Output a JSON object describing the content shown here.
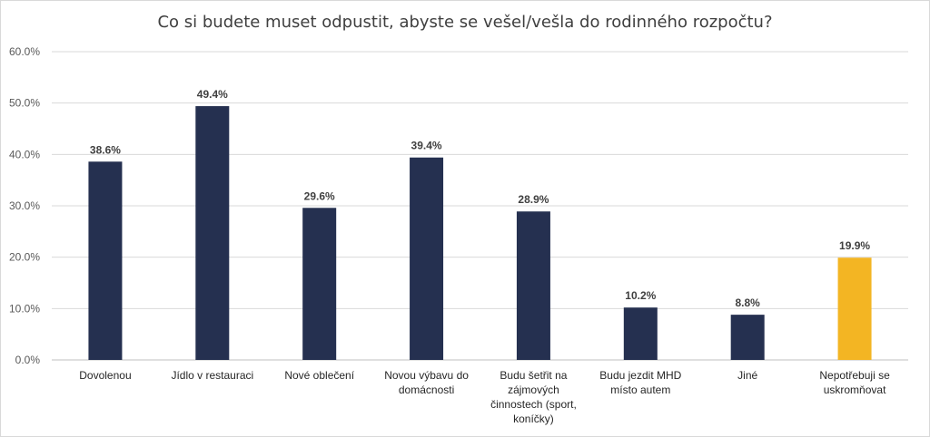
{
  "chart_data": {
    "type": "bar",
    "title": "Co si budete muset odpustit, abyste se vešel/vešla do rodinného rozpočtu?",
    "xlabel": "",
    "ylabel": "",
    "ylim": [
      0,
      60
    ],
    "grid": true,
    "y_ticks": [
      "0.0%",
      "10.0%",
      "20.0%",
      "30.0%",
      "40.0%",
      "50.0%",
      "60.0%"
    ],
    "categories": [
      [
        "Dovolenou"
      ],
      [
        "Jídlo v restauraci"
      ],
      [
        "Nové oblečení"
      ],
      [
        "Novou výbavu do",
        "domácnosti"
      ],
      [
        "Budu šetřit na",
        "zájmových",
        "činnostech (sport,",
        "koníčky)"
      ],
      [
        "Budu jezdit MHD",
        "místo autem"
      ],
      [
        "Jiné"
      ],
      [
        "Nepotřebuji se",
        "uskromňovat"
      ]
    ],
    "values": [
      38.6,
      49.4,
      29.6,
      39.4,
      28.9,
      10.2,
      8.8,
      19.9
    ],
    "value_labels": [
      "38.6%",
      "49.4%",
      "29.6%",
      "39.4%",
      "28.9%",
      "10.2%",
      "8.8%",
      "19.9%"
    ],
    "colors": [
      "#253050",
      "#253050",
      "#253050",
      "#253050",
      "#253050",
      "#253050",
      "#253050",
      "#f3b523"
    ],
    "grid_color": "#d9d9d9",
    "axis_color": "#bfbfbf"
  }
}
